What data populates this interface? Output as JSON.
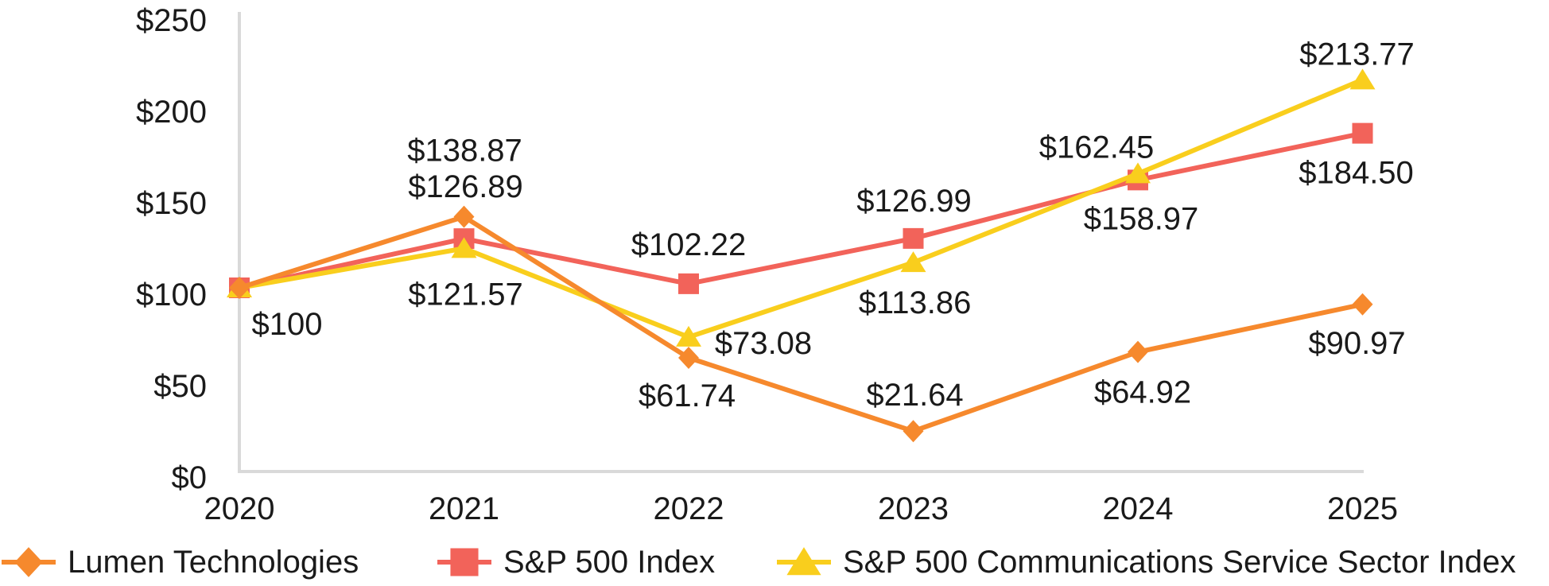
{
  "chart_data": {
    "type": "line",
    "title": "",
    "xlabel": "",
    "ylabel": "",
    "x_categories": [
      "2020",
      "2021",
      "2022",
      "2023",
      "2024",
      "2025"
    ],
    "y_ticks": [
      "$250",
      "$200",
      "$150",
      "$100",
      "$50",
      "$0"
    ],
    "y_tick_values": [
      250,
      200,
      150,
      100,
      50,
      0
    ],
    "ylim": [
      0,
      250
    ],
    "grid": false,
    "axis_color": "#d9d9d9",
    "text_color": "#1a1a1a",
    "legend_position": "bottom",
    "series": [
      {
        "name": "S&P 500 Index",
        "marker": "square",
        "color": "#f2635a",
        "values": [
          100,
          126.89,
          102.22,
          126.99,
          158.97,
          184.5
        ],
        "labels": [
          null,
          "$126.89",
          "$102.22",
          "$126.99",
          "$158.97",
          "$184.50"
        ],
        "label_offsets": [
          null,
          [
            2,
            -65
          ],
          [
            0,
            -49
          ],
          [
            1,
            -47
          ],
          [
            4,
            49
          ],
          [
            -8,
            50
          ]
        ]
      },
      {
        "name": "S&P 500 Communications Service Sector Index",
        "marker": "triangle",
        "color": "#f9ce1d",
        "values": [
          100,
          121.57,
          73.08,
          113.86,
          162.45,
          213.77
        ],
        "labels": [
          null,
          "$121.57",
          "$73.08",
          "$113.86",
          "$162.45",
          "$213.77"
        ],
        "label_offsets": [
          null,
          [
            2,
            58
          ],
          [
            94,
            8
          ],
          [
            2,
            51
          ],
          [
            -52,
            -33
          ],
          [
            -7,
            -32
          ]
        ]
      },
      {
        "name": "Lumen Technologies",
        "marker": "diamond",
        "color": "#f6892d",
        "values": [
          100,
          138.87,
          61.74,
          21.64,
          64.92,
          90.97
        ],
        "labels": [
          "$100",
          "$138.87",
          "$61.74",
          "$21.64",
          "$64.92",
          "$90.97"
        ],
        "label_offsets": [
          [
            60,
            46
          ],
          [
            1,
            -83
          ],
          [
            -2,
            48
          ],
          [
            2,
            -45
          ],
          [
            6,
            51
          ],
          [
            -7,
            49
          ]
        ]
      }
    ],
    "legend": [
      {
        "label": "Lumen Technologies",
        "marker": "diamond",
        "color": "#f6892d"
      },
      {
        "label": "S&P 500 Index",
        "marker": "square",
        "color": "#f2635a"
      },
      {
        "label": "S&P 500 Communications Service Sector Index",
        "marker": "triangle",
        "color": "#f9ce1d"
      }
    ]
  }
}
